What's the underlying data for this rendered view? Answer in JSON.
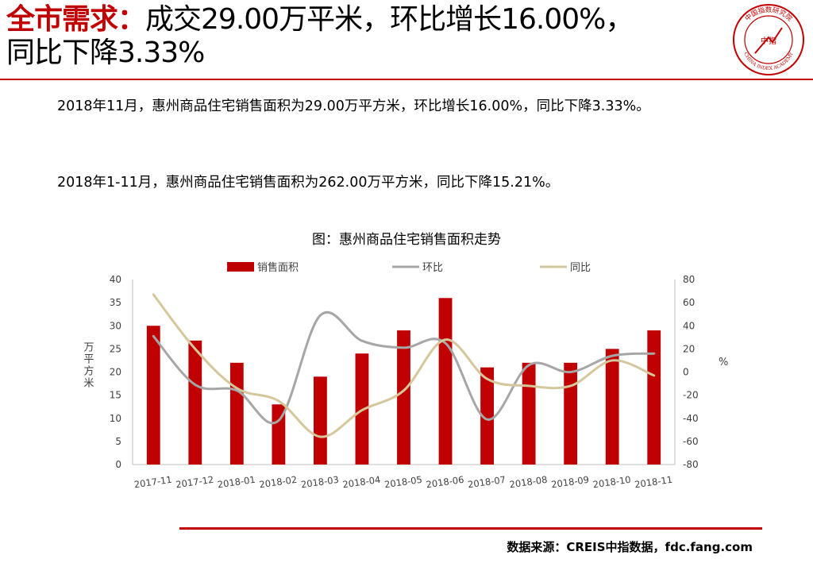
{
  "header": {
    "title_lead": "全市需求：",
    "title_rest": "成交29.00万平米，环比增长16.00%，",
    "title_line2": "同比下降3.33%",
    "logo": {
      "icon": "china-index-academy-seal-icon",
      "center_text": "中指",
      "ring_text_top": "中国指数研究院",
      "ring_text_bottom": "CHINA INDEX ACADEMY"
    },
    "accent_color": "#c00000"
  },
  "paragraphs": [
    "2018年11月，惠州商品住宅销售面积为29.00万平方米，环比增长16.00%，同比下降3.33%。",
    "2018年1-11月，惠州商品住宅销售面积为262.00万平方米，同比下降15.21%。"
  ],
  "chart_data": {
    "type": "bar",
    "title": "图：惠州商品住宅销售面积走势",
    "categories": [
      "2017-11",
      "2017-12",
      "2018-01",
      "2018-02",
      "2018-03",
      "2018-04",
      "2018-05",
      "2018-06",
      "2018-07",
      "2018-08",
      "2018-09",
      "2018-10",
      "2018-11"
    ],
    "series": [
      {
        "name": "销售面积",
        "type": "bar",
        "axis": "left",
        "color": "#c00000",
        "values": [
          30,
          26.8,
          22,
          13,
          19,
          24,
          29,
          36,
          21,
          22,
          22,
          25,
          29
        ]
      },
      {
        "name": "环比",
        "type": "line",
        "axis": "right",
        "color": "#a6a6a6",
        "values": [
          31,
          -11,
          -16,
          -42,
          49,
          27,
          21,
          25,
          -41,
          6,
          0,
          14,
          16
        ]
      },
      {
        "name": "同比",
        "type": "line",
        "axis": "right",
        "color": "#d5c79b",
        "values": [
          67,
          20,
          -14,
          -25,
          -56,
          -33,
          -16,
          28,
          -6,
          -12,
          -12,
          10,
          -3
        ]
      }
    ],
    "ylabel": "万平方米",
    "y2label": "%",
    "ylim": [
      0,
      40
    ],
    "yticks": [
      0,
      5,
      10,
      15,
      20,
      25,
      30,
      35,
      40
    ],
    "y2lim": [
      -80,
      80
    ],
    "y2ticks": [
      -80,
      -60,
      -40,
      -20,
      0,
      20,
      40,
      60,
      80
    ],
    "legend_position": "top",
    "grid": false
  },
  "footer": {
    "source": "数据来源：CREIS中指数据，fdc.fang.com"
  }
}
